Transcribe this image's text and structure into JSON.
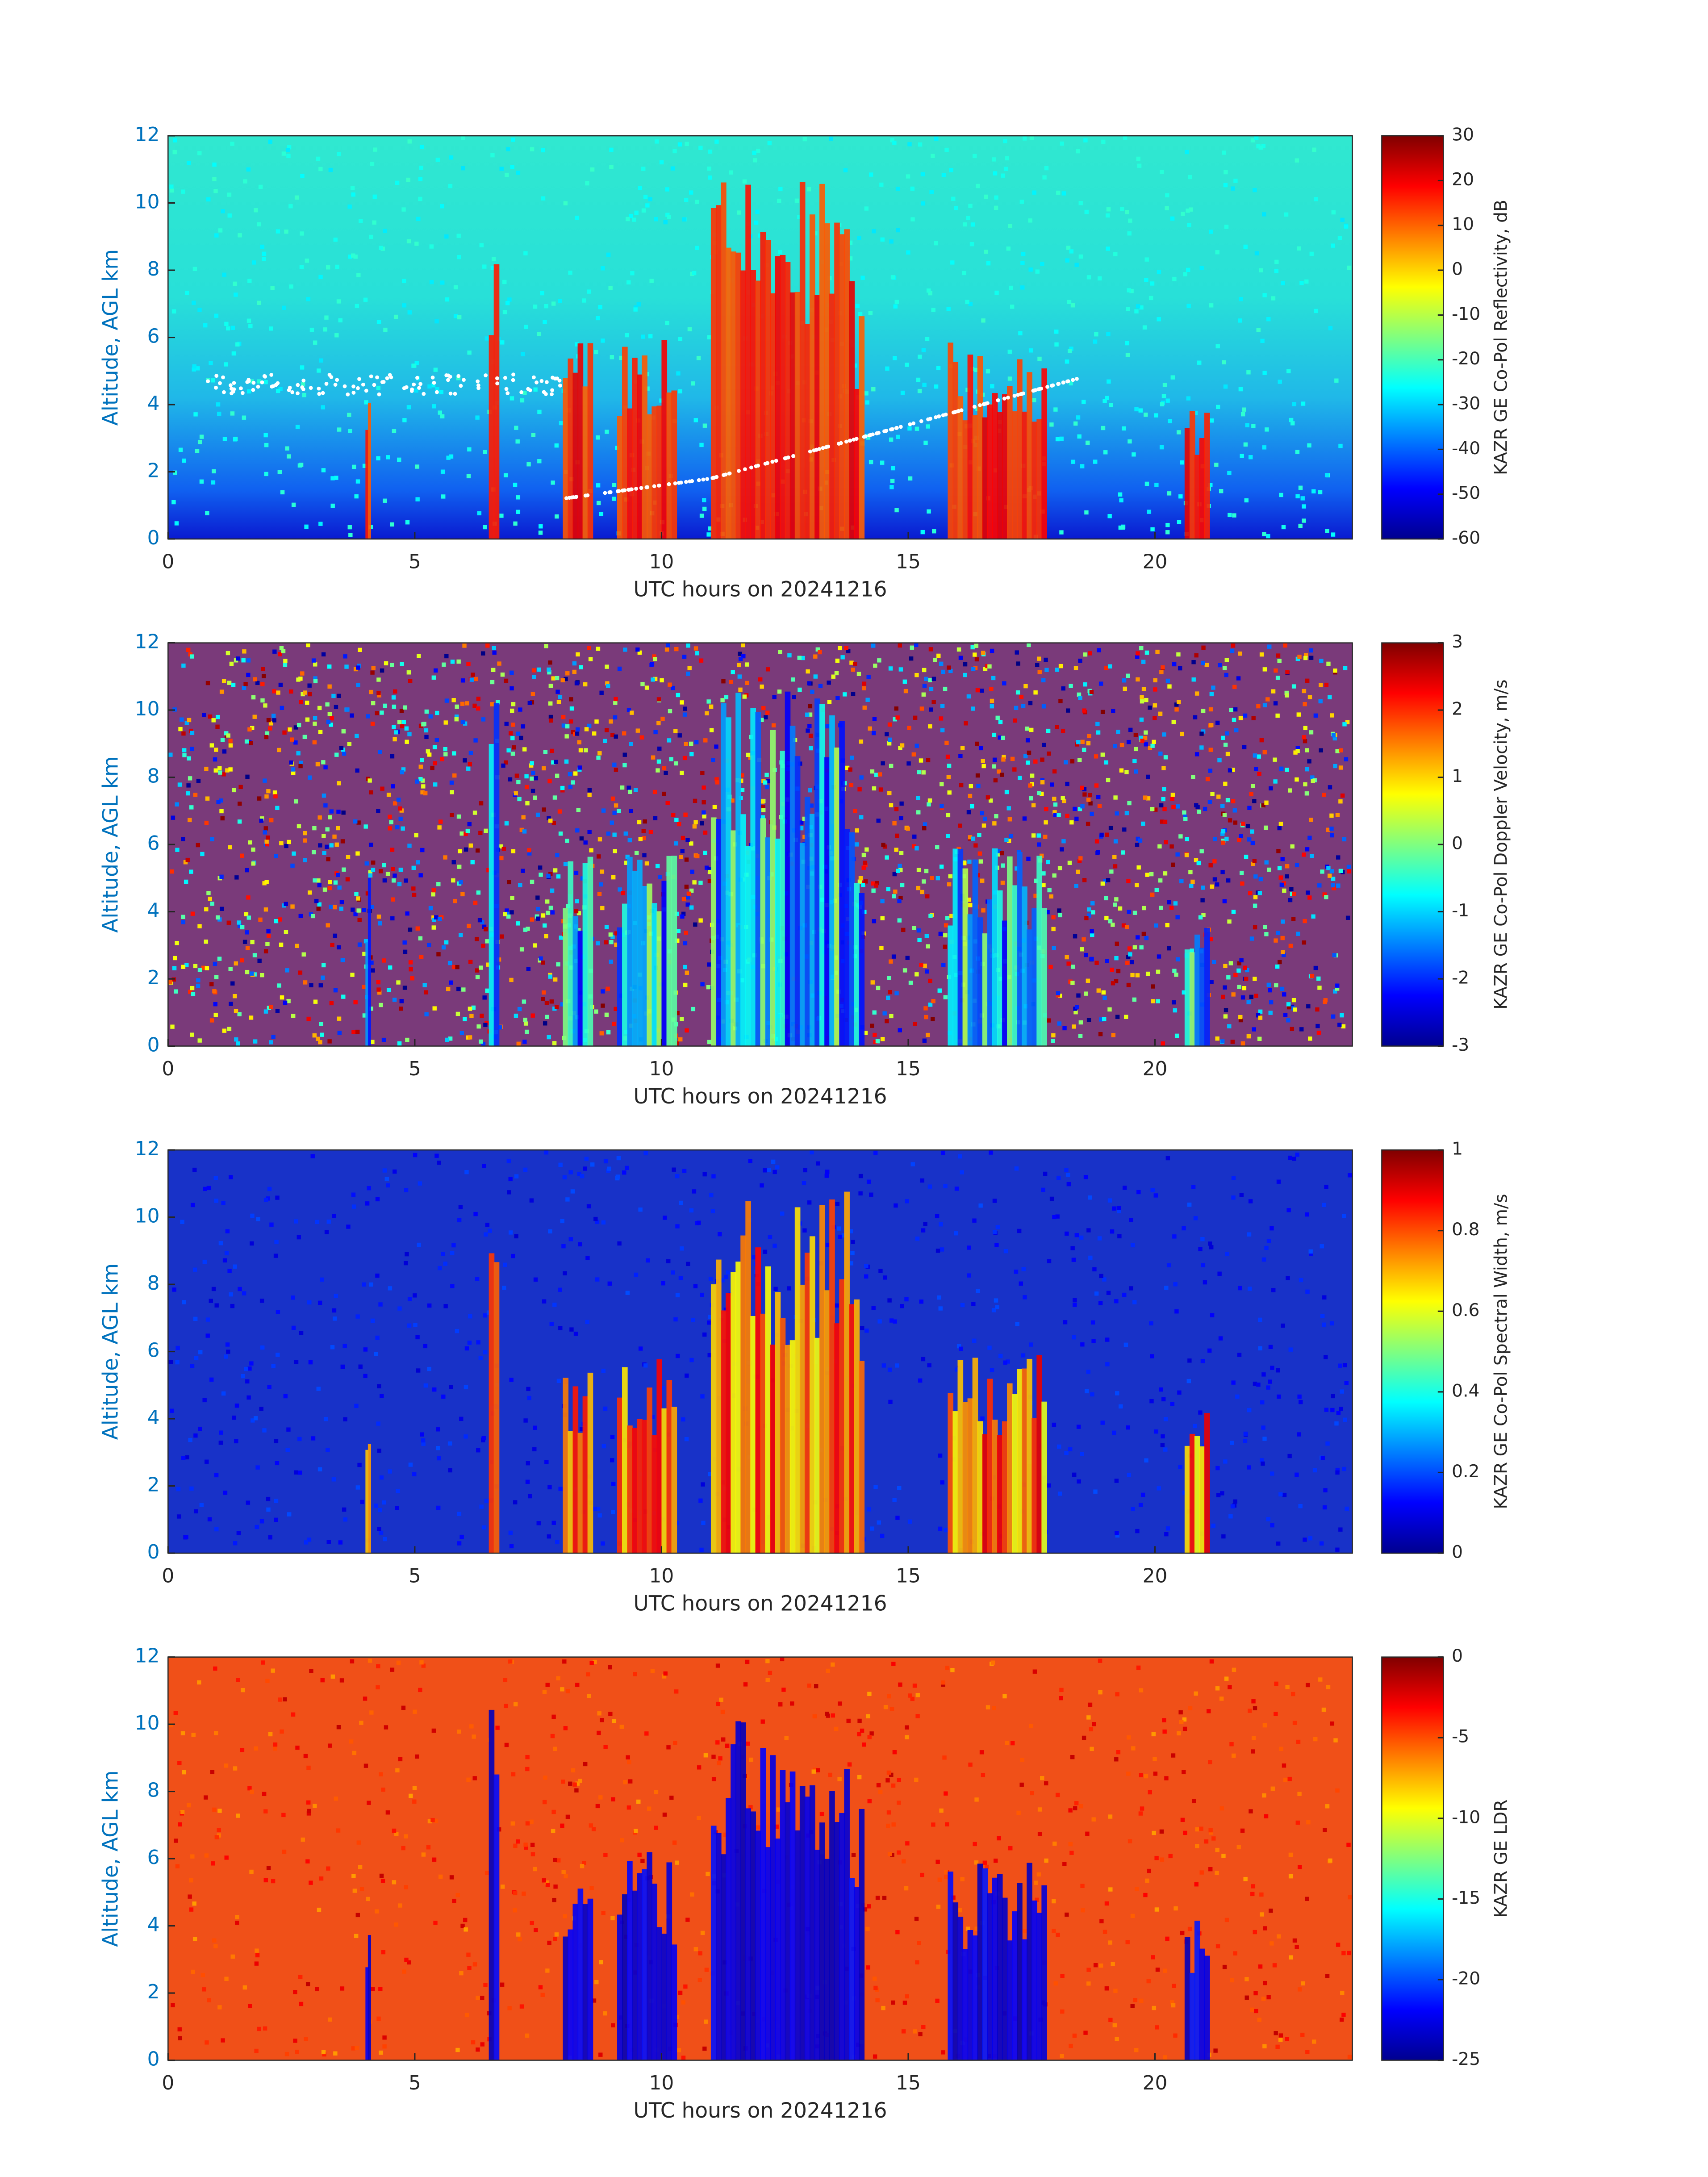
{
  "chart_data": [
    {
      "type": "heatmap",
      "x_label": "UTC hours on 20241216",
      "y_label": "Altitude, AGL km",
      "xlim": [
        0,
        24
      ],
      "xticks": [
        0,
        5,
        10,
        15,
        20
      ],
      "ylim": [
        0,
        12
      ],
      "yticks": [
        0,
        2,
        4,
        6,
        8,
        10,
        12
      ],
      "colormap": "jet",
      "colorbar": {
        "label": "KAZR GE Co-Pol Reflectivity, dB",
        "lim": [
          -60,
          30
        ],
        "ticks": [
          -60,
          -50,
          -40,
          -30,
          -20,
          -10,
          0,
          10,
          20,
          30
        ]
      }
    },
    {
      "type": "heatmap",
      "x_label": "UTC hours on 20241216",
      "y_label": "Altitude, AGL km",
      "xlim": [
        0,
        24
      ],
      "xticks": [
        0,
        5,
        10,
        15,
        20
      ],
      "ylim": [
        0,
        12
      ],
      "yticks": [
        0,
        2,
        4,
        6,
        8,
        10,
        12
      ],
      "colormap": "jet",
      "colorbar": {
        "label": "KAZR GE Co-Pol Doppler Velocity, m/s",
        "lim": [
          -3,
          3
        ],
        "ticks": [
          -3,
          -2,
          -1,
          0,
          1,
          2,
          3
        ]
      }
    },
    {
      "type": "heatmap",
      "x_label": "UTC hours on 20241216",
      "y_label": "Altitude, AGL km",
      "xlim": [
        0,
        24
      ],
      "xticks": [
        0,
        5,
        10,
        15,
        20
      ],
      "ylim": [
        0,
        12
      ],
      "yticks": [
        0,
        2,
        4,
        6,
        8,
        10,
        12
      ],
      "colormap": "jet",
      "colorbar": {
        "label": "KAZR GE Co-Pol Spectral Width, m/s",
        "lim": [
          0,
          1
        ],
        "ticks": [
          0,
          0.2,
          0.4,
          0.6,
          0.8,
          1
        ]
      }
    },
    {
      "type": "heatmap",
      "x_label": "UTC hours on 20241216",
      "y_label": "Altitude, AGL km",
      "xlim": [
        0,
        24
      ],
      "xticks": [
        0,
        5,
        10,
        15,
        20
      ],
      "ylim": [
        0,
        12
      ],
      "yticks": [
        0,
        2,
        4,
        6,
        8,
        10,
        12
      ],
      "colormap": "jet",
      "colorbar": {
        "label": "KAZR GE LDR",
        "lim": [
          -25,
          0
        ],
        "ticks": [
          -25,
          -20,
          -15,
          -10,
          -5,
          0
        ]
      }
    }
  ]
}
